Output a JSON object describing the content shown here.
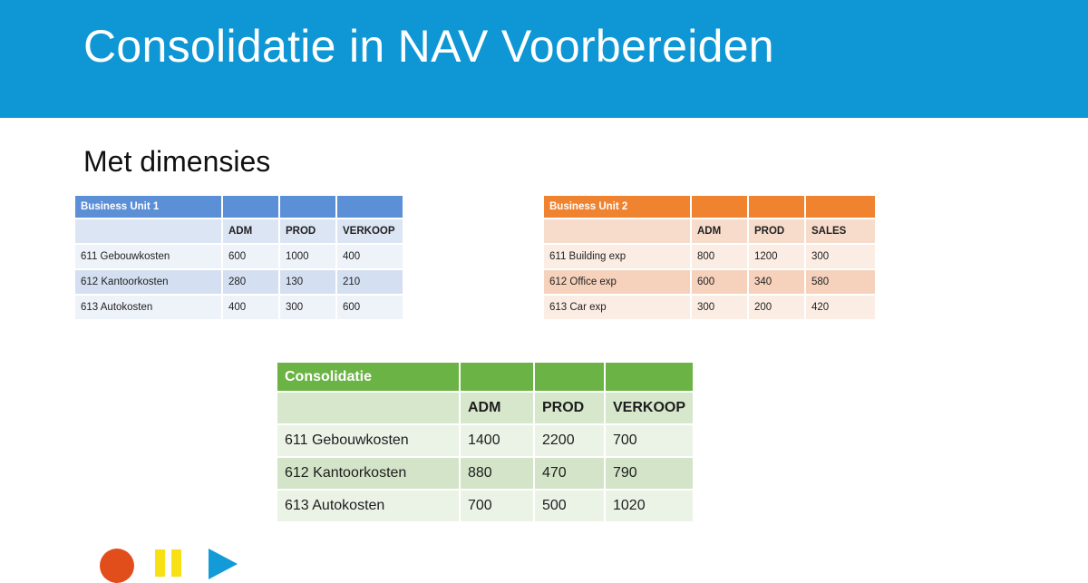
{
  "slide": {
    "title": "Consolidatie in NAV Voorbereiden",
    "subtitle": "Met dimensies"
  },
  "bu1": {
    "title": "Business Unit 1",
    "columns": [
      "ADM",
      "PROD",
      "VERKOOP"
    ],
    "rows": [
      {
        "label": "611 Gebouwkosten",
        "values": [
          "600",
          "1000",
          "400"
        ]
      },
      {
        "label": "612 Kantoorkosten",
        "values": [
          "280",
          "130",
          "210"
        ]
      },
      {
        "label": "613 Autokosten",
        "values": [
          "400",
          "300",
          "600"
        ]
      }
    ]
  },
  "bu2": {
    "title": "Business Unit 2",
    "columns": [
      "ADM",
      "PROD",
      "SALES"
    ],
    "rows": [
      {
        "label": "611 Building exp",
        "values": [
          "800",
          "1200",
          "300"
        ]
      },
      {
        "label": "612 Office exp",
        "values": [
          "600",
          "340",
          "580"
        ]
      },
      {
        "label": "613 Car exp",
        "values": [
          "300",
          "200",
          "420"
        ]
      }
    ]
  },
  "consolidation": {
    "title": "Consolidatie",
    "columns": [
      "ADM",
      "PROD",
      "VERKOOP"
    ],
    "rows": [
      {
        "label": "611 Gebouwkosten",
        "values": [
          "1400",
          "2200",
          "700"
        ]
      },
      {
        "label": "612 Kantoorkosten",
        "values": [
          "880",
          "470",
          "790"
        ]
      },
      {
        "label": "613 Autokosten",
        "values": [
          "700",
          "500",
          "1020"
        ]
      }
    ]
  },
  "controls": {
    "record_icon": "record-icon",
    "pause_icon": "pause-icon",
    "play_icon": "play-icon"
  },
  "colors": {
    "header_blue": "#0e97d4",
    "bu1_blue": "#5b8fd6",
    "bu2_orange": "#ef8330",
    "consolidation_green": "#6bb344"
  }
}
